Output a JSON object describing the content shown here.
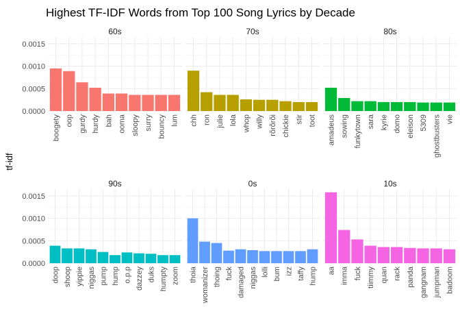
{
  "chart_data": {
    "type": "bar",
    "title": "Highest TF-IDF Words from Top 100 Song Lyrics by Decade",
    "ylabel": "tf-idf",
    "xlabel": "",
    "ylim": [
      0,
      0.00165
    ],
    "yticks": [
      0.0,
      0.0005,
      0.001,
      0.0015
    ],
    "ytick_labels": [
      "0.0000",
      "0.0005",
      "0.0010",
      "0.0015"
    ],
    "grid": true,
    "legend": "none",
    "panels": [
      {
        "facet": "60s",
        "color": "#F8766D",
        "categories": [
          "boogety",
          "oop",
          "gurdy",
          "hurdy",
          "bah",
          "ooma",
          "sloopy",
          "surry",
          "bouncy",
          "lum"
        ],
        "values": [
          0.00095,
          0.00089,
          0.00064,
          0.00052,
          0.00039,
          0.00039,
          0.00036,
          0.00036,
          0.00036,
          0.00036
        ]
      },
      {
        "facet": "70s",
        "color": "#B79F00",
        "categories": [
          "chh",
          "ron",
          "julie",
          "lola",
          "whop",
          "willy",
          "rõrõrõi",
          "chickie",
          "stir",
          "toot"
        ],
        "values": [
          0.0009,
          0.00042,
          0.00036,
          0.00036,
          0.00026,
          0.00025,
          0.00025,
          0.00022,
          0.0002,
          0.0002
        ]
      },
      {
        "facet": "80s",
        "color": "#00BA38",
        "categories": [
          "amadeus",
          "sowing",
          "funkytown",
          "sara",
          "kyrie",
          "domo",
          "eleison",
          "5309",
          "ghostbusters",
          "vie"
        ],
        "values": [
          0.00052,
          0.00029,
          0.00022,
          0.00022,
          0.0002,
          0.0002,
          0.0002,
          0.00019,
          0.00019,
          0.00019
        ]
      },
      {
        "facet": "90s",
        "color": "#00BFC4",
        "categories": [
          "doop",
          "shoop",
          "yippie",
          "niggas",
          "pump",
          "hump",
          "o.p.p",
          "dazzey",
          "duks",
          "humpty",
          "zoom"
        ],
        "values": [
          0.00039,
          0.00033,
          0.00033,
          0.00031,
          0.00025,
          0.00018,
          0.00024,
          0.00022,
          0.00021,
          0.00018,
          0.00018
        ]
      },
      {
        "facet": "0s",
        "color": "#619CFF",
        "categories": [
          "thoia",
          "womanizer",
          "thoing",
          "fuck",
          "damaged",
          "niggas",
          "lolli",
          "bum",
          "izz",
          "taffy",
          "hump"
        ],
        "values": [
          0.001,
          0.00048,
          0.00045,
          0.00028,
          0.00031,
          0.00029,
          0.00027,
          0.00027,
          0.00027,
          0.00027,
          0.00031
        ]
      },
      {
        "facet": "10s",
        "color": "#F564E3",
        "categories": [
          "aa",
          "imma",
          "fuck",
          "tiimmy",
          "quan",
          "rack",
          "panda",
          "gangnam",
          "jumpman",
          "badoom"
        ],
        "values": [
          0.00158,
          0.00074,
          0.00053,
          0.00039,
          0.00036,
          0.00036,
          0.00034,
          0.00033,
          0.00033,
          0.00031
        ]
      }
    ]
  }
}
